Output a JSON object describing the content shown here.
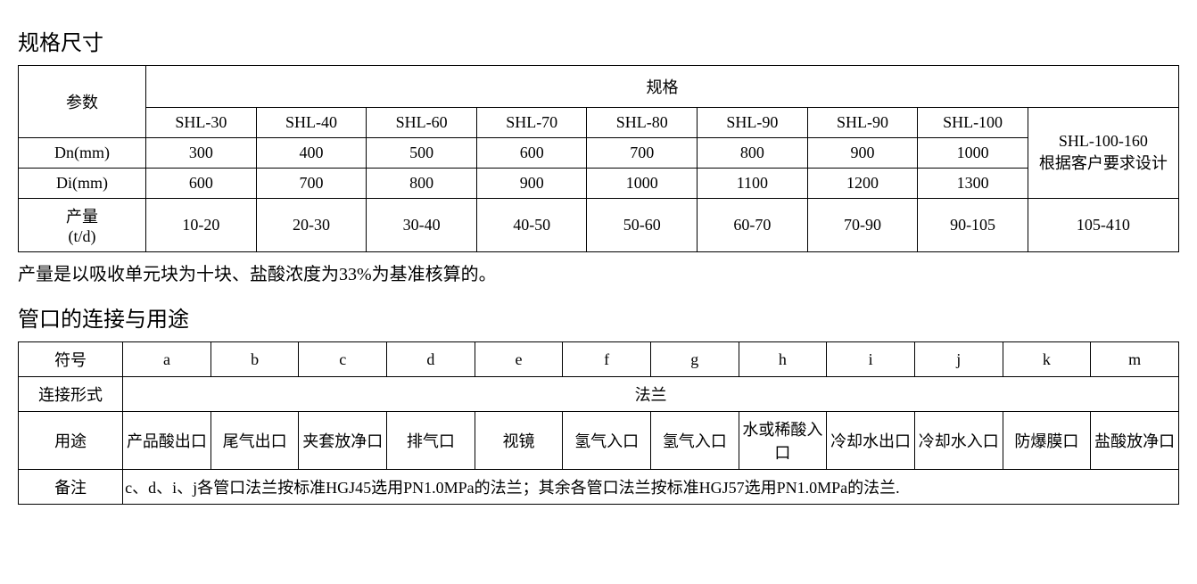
{
  "spec_section": {
    "title": "规格尺寸",
    "param_header": "参数",
    "group_header": "规格",
    "models": [
      "SHL-30",
      "SHL-40",
      "SHL-60",
      "SHL-70",
      "SHL-80",
      "SHL-90",
      "SHL-90",
      "SHL-100"
    ],
    "extra_model": "SHL-100-160",
    "extra_note": "根据客户要求设计",
    "rows": [
      {
        "label": "Dn(mm)",
        "values": [
          "300",
          "400",
          "500",
          "600",
          "700",
          "800",
          "900",
          "1000"
        ]
      },
      {
        "label": "Di(mm)",
        "values": [
          "600",
          "700",
          "800",
          "900",
          "1000",
          "1100",
          "1200",
          "1300"
        ]
      },
      {
        "label": "产量\n(t/d)",
        "values": [
          "10-20",
          "20-30",
          "30-40",
          "40-50",
          "50-60",
          "60-70",
          "70-90",
          "90-105"
        ],
        "extra": "105-410"
      }
    ],
    "footnote": "产量是以吸收单元块为十块、盐酸浓度为33%为基准核算的。"
  },
  "port_section": {
    "title": "管口的连接与用途",
    "symbol_label": "符号",
    "symbols": [
      "a",
      "b",
      "c",
      "d",
      "e",
      "f",
      "g",
      "h",
      "i",
      "j",
      "k",
      "m"
    ],
    "conn_label": "连接形式",
    "conn_value": "法兰",
    "use_label": "用途",
    "uses": [
      "产品酸出口",
      "尾气出口",
      "夹套放净口",
      "排气口",
      "视镜",
      "氢气入口",
      "氢气入口",
      "水或稀酸入口",
      "冷却水出口",
      "冷却水入口",
      "防爆膜口",
      "盐酸放净口"
    ],
    "remark_label": "备注",
    "remark_text": "c、d、i、j各管口法兰按标准HGJ45选用PN1.0MPa的法兰；其余各管口法兰按标准HGJ57选用PN1.0MPa的法兰."
  },
  "style": {
    "text_color": "#000000",
    "background_color": "#ffffff",
    "border_color": "#000000",
    "title_fontsize": 24,
    "cell_fontsize": 18,
    "note_fontsize": 20
  }
}
